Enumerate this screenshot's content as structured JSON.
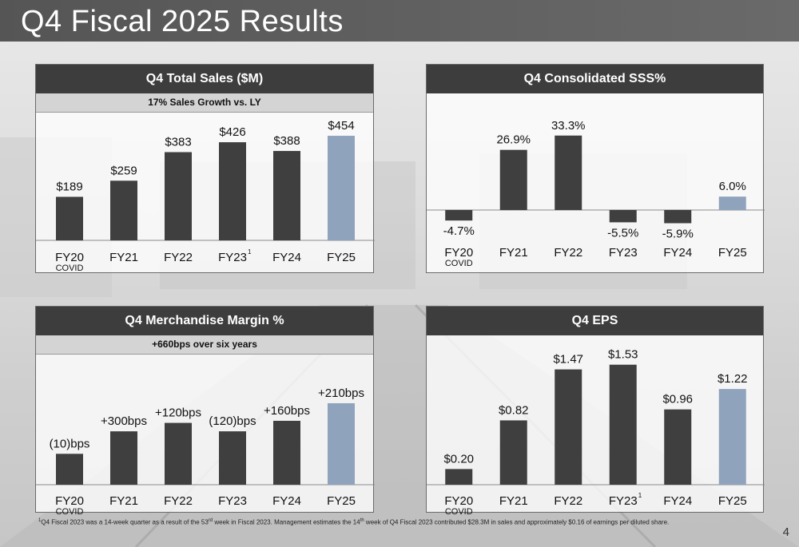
{
  "title": "Q4 Fiscal 2025 Results",
  "colors": {
    "bar": "#3f3f3f",
    "highlight": "#8fa3bd",
    "header": "#3d3d3d"
  },
  "footnote": {
    "sup1": "1",
    "t1": "Q4 Fiscal 2023 was a 14-week quarter as a result of the 53",
    "sup2": "rd",
    "t2": " week in Fiscal 2023. Management estimates the 14",
    "sup3": "th",
    "t3": " week of Q4 Fiscal 2023 contributed $28.3M in sales and approximately $0.16 of earnings per diluted share."
  },
  "page_number": "4",
  "chart_data": [
    {
      "type": "bar",
      "title": "Q4 Total Sales ($M)",
      "subtitle": "17% Sales Growth vs. LY",
      "categories": [
        "FY20",
        "FY21",
        "FY22",
        "FY23",
        "FY24",
        "FY25"
      ],
      "sub_labels": [
        "COVID",
        "",
        "",
        "",
        "",
        ""
      ],
      "footnote_marks": [
        "",
        "",
        "",
        "1",
        "",
        ""
      ],
      "values": [
        189,
        259,
        383,
        426,
        388,
        454
      ],
      "data_labels": [
        "$189",
        "$259",
        "$383",
        "$426",
        "$388",
        "$454"
      ],
      "highlight_index": 5,
      "ylim": [
        0,
        520
      ]
    },
    {
      "type": "bar",
      "title": "Q4 Consolidated SSS%",
      "subtitle": "",
      "categories": [
        "FY20",
        "FY21",
        "FY22",
        "FY23",
        "FY24",
        "FY25"
      ],
      "sub_labels": [
        "COVID",
        "",
        "",
        "",
        "",
        ""
      ],
      "footnote_marks": [
        "",
        "",
        "",
        "",
        "",
        ""
      ],
      "values": [
        -4.7,
        26.9,
        33.3,
        -5.5,
        -5.9,
        6.0
      ],
      "data_labels": [
        "-4.7%",
        "26.9%",
        "33.3%",
        "-5.5%",
        "-5.9%",
        "6.0%"
      ],
      "highlight_index": 5,
      "ylim": [
        -8,
        37
      ]
    },
    {
      "type": "bar",
      "title": "Q4 Merchandise Margin %",
      "subtitle": "+660bps over six years",
      "categories": [
        "FY20",
        "FY21",
        "FY22",
        "FY23",
        "FY24",
        "FY25"
      ],
      "sub_labels": [
        "COVID",
        "",
        "",
        "",
        "",
        ""
      ],
      "footnote_marks": [
        "",
        "",
        "",
        "",
        "",
        ""
      ],
      "values": [
        -10,
        300,
        120,
        -120,
        160,
        210
      ],
      "data_labels": [
        "(10)bps",
        "+300bps",
        "+120bps",
        "(120)bps",
        "+160bps",
        "+210bps"
      ],
      "highlight_index": 5,
      "ylim": [
        0,
        100
      ]
    },
    {
      "type": "bar",
      "title": "Q4 EPS",
      "subtitle": "",
      "categories": [
        "FY20",
        "FY21",
        "FY22",
        "FY23",
        "FY24",
        "FY25"
      ],
      "sub_labels": [
        "COVID",
        "",
        "",
        "",
        "",
        ""
      ],
      "footnote_marks": [
        "",
        "",
        "",
        "1",
        "",
        ""
      ],
      "values": [
        0.2,
        0.82,
        1.47,
        1.53,
        0.96,
        1.22
      ],
      "data_labels": [
        "$0.20",
        "$0.82",
        "$1.47",
        "$1.53",
        "$0.96",
        "$1.22"
      ],
      "highlight_index": 5,
      "ylim": [
        0,
        1.7
      ]
    }
  ],
  "margin_bar_levels": [
    25.3,
    43.7,
    50.6,
    43.7,
    52.3,
    66.7
  ]
}
